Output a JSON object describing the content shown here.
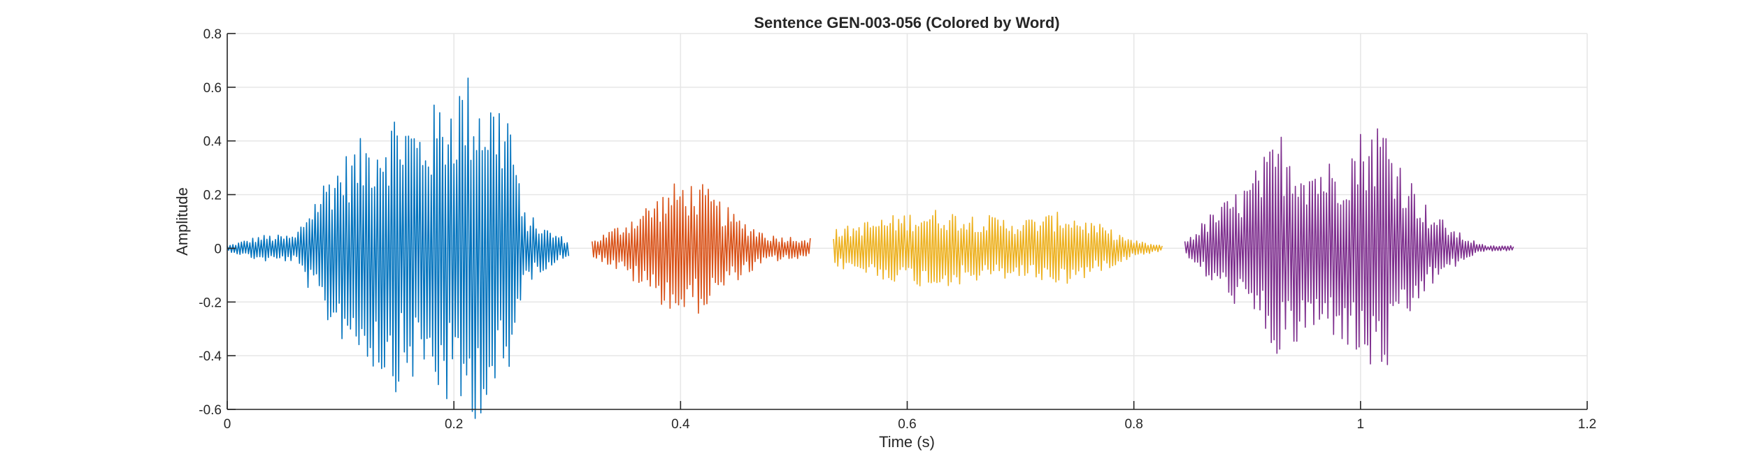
{
  "chart_data": {
    "type": "line",
    "title": "Sentence GEN-003-056 (Colored by Word)",
    "xlabel": "Time (s)",
    "ylabel": "Amplitude",
    "xlim": [
      0,
      1.2
    ],
    "ylim": [
      -0.6,
      0.8
    ],
    "xticks": [
      0,
      0.2,
      0.4,
      0.6,
      0.8,
      1,
      1.2
    ],
    "xtick_labels": [
      "0",
      "0.2",
      "0.4",
      "0.6",
      "0.8",
      "1",
      "1.2"
    ],
    "yticks": [
      -0.6,
      -0.4,
      -0.2,
      0,
      0.2,
      0.4,
      0.6,
      0.8
    ],
    "ytick_labels": [
      "-0.6",
      "-0.4",
      "-0.2",
      "0",
      "0.2",
      "0.4",
      "0.6",
      "0.8"
    ],
    "grid": true,
    "legend": "none",
    "series": [
      {
        "color": "#0072BD",
        "t_start": 0.0,
        "t_end": 0.302,
        "envelope": [
          [
            0.0,
            0.01
          ],
          [
            0.03,
            0.05
          ],
          [
            0.06,
            0.05
          ],
          [
            0.07,
            0.14
          ],
          [
            0.09,
            0.3
          ],
          [
            0.12,
            0.42
          ],
          [
            0.15,
            0.54
          ],
          [
            0.17,
            0.48
          ],
          [
            0.19,
            0.58
          ],
          [
            0.21,
            0.67
          ],
          [
            0.23,
            0.6
          ],
          [
            0.25,
            0.55
          ],
          [
            0.26,
            0.15
          ],
          [
            0.28,
            0.08
          ],
          [
            0.302,
            0.03
          ]
        ]
      },
      {
        "color": "#D95319",
        "t_start": 0.322,
        "t_end": 0.515,
        "envelope": [
          [
            0.322,
            0.03
          ],
          [
            0.35,
            0.1
          ],
          [
            0.38,
            0.2
          ],
          [
            0.4,
            0.26
          ],
          [
            0.42,
            0.24
          ],
          [
            0.45,
            0.12
          ],
          [
            0.48,
            0.05
          ],
          [
            0.515,
            0.04
          ]
        ]
      },
      {
        "color": "#EDB120",
        "t_start": 0.535,
        "t_end": 0.825,
        "envelope": [
          [
            0.535,
            0.07
          ],
          [
            0.57,
            0.11
          ],
          [
            0.62,
            0.15
          ],
          [
            0.66,
            0.13
          ],
          [
            0.7,
            0.11
          ],
          [
            0.74,
            0.14
          ],
          [
            0.77,
            0.09
          ],
          [
            0.8,
            0.03
          ],
          [
            0.825,
            0.01
          ]
        ]
      },
      {
        "color": "#7E2F8E",
        "t_start": 0.845,
        "t_end": 1.135,
        "envelope": [
          [
            0.845,
            0.03
          ],
          [
            0.87,
            0.14
          ],
          [
            0.9,
            0.25
          ],
          [
            0.93,
            0.44
          ],
          [
            0.95,
            0.35
          ],
          [
            0.98,
            0.33
          ],
          [
            1.0,
            0.45
          ],
          [
            1.02,
            0.5
          ],
          [
            1.04,
            0.3
          ],
          [
            1.06,
            0.15
          ],
          [
            1.09,
            0.05
          ],
          [
            1.11,
            0.01
          ],
          [
            1.135,
            0.01
          ]
        ]
      }
    ]
  }
}
